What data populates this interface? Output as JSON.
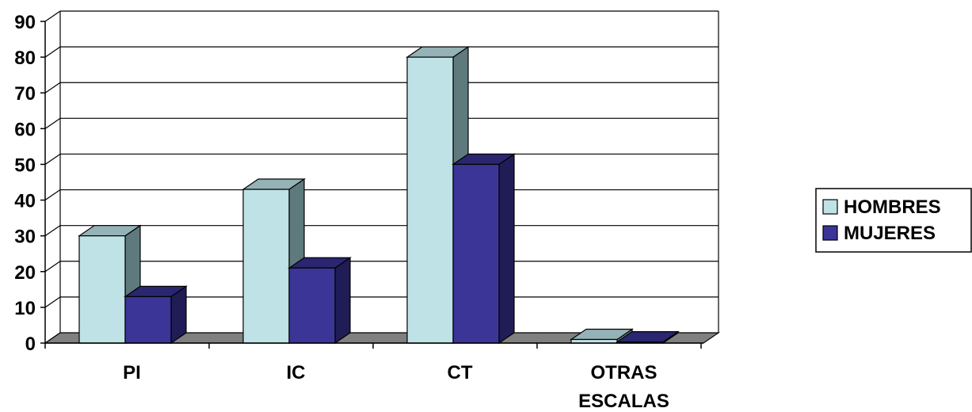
{
  "chart_data": {
    "type": "bar",
    "categories": [
      [
        "PI"
      ],
      [
        "IC"
      ],
      [
        "CT"
      ],
      [
        "OTRAS",
        "ESCALAS"
      ]
    ],
    "series": [
      {
        "name": "HOMBRES",
        "values": [
          30,
          43,
          80,
          1
        ],
        "color": "#bfe2e6"
      },
      {
        "name": "MUJERES",
        "values": [
          13,
          21,
          50,
          0.3
        ],
        "color": "#3a3596"
      }
    ],
    "ylim": [
      0,
      90
    ],
    "yticks": [
      "0",
      "10",
      "20",
      "30",
      "40",
      "50",
      "60",
      "70",
      "80",
      "90"
    ],
    "grid": true,
    "legend": "right",
    "floor_color": "#808080",
    "hombres_side_color": "#5f7a7c",
    "hombres_top_color": "#95b2b6",
    "mujeres_side_color": "#201c55",
    "mujeres_top_color": "#2a2670"
  }
}
